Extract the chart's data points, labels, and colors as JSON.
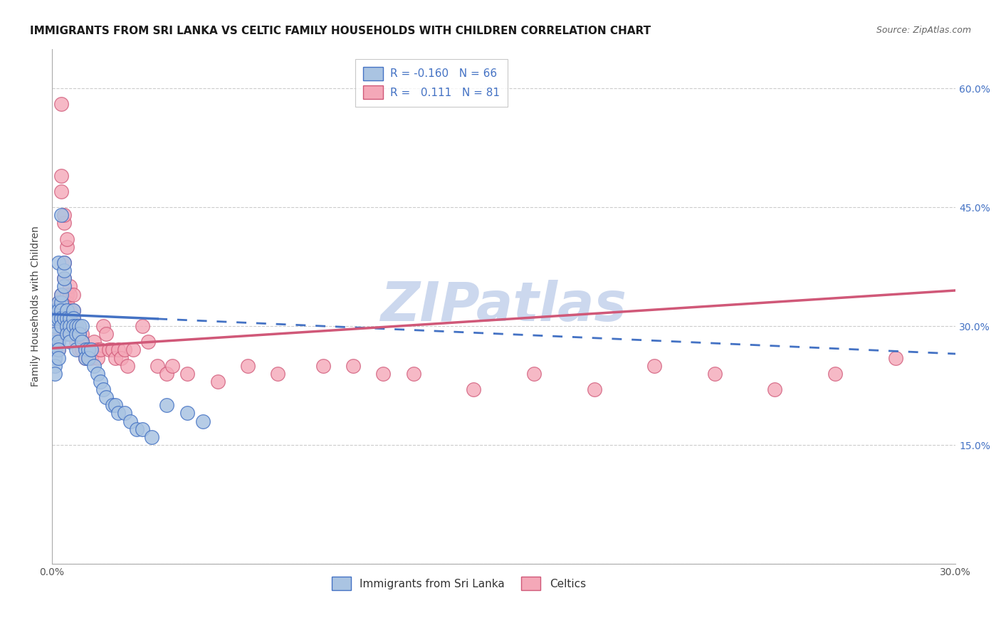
{
  "title": "IMMIGRANTS FROM SRI LANKA VS CELTIC FAMILY HOUSEHOLDS WITH CHILDREN CORRELATION CHART",
  "source": "Source: ZipAtlas.com",
  "ylabel": "Family Households with Children",
  "xlim": [
    0.0,
    0.3
  ],
  "ylim": [
    0.0,
    0.65
  ],
  "blue_R": -0.16,
  "blue_N": 66,
  "pink_R": 0.111,
  "pink_N": 81,
  "blue_color": "#aac4e2",
  "pink_color": "#f4a8b8",
  "blue_line_color": "#4472C4",
  "pink_line_color": "#D05878",
  "watermark": "ZIPatlas",
  "watermark_color": "#ccd8ee",
  "legend1_label_blue": "R = -0.160   N = 66",
  "legend1_label_pink": "R =   0.111   N = 81",
  "legend2_label_blue": "Immigrants from Sri Lanka",
  "legend2_label_pink": "Celtics",
  "ytick_positions": [
    0.0,
    0.15,
    0.3,
    0.45,
    0.6
  ],
  "ytick_labels_right": [
    "0.0%",
    "15.0%",
    "30.0%",
    "45.0%",
    "60.0%"
  ],
  "xtick_positions": [
    0.0,
    0.05,
    0.1,
    0.15,
    0.2,
    0.25,
    0.3
  ],
  "xtick_labels": [
    "0.0%",
    "",
    "",
    "",
    "",
    "",
    "30.0%"
  ],
  "blue_x": [
    0.001,
    0.001,
    0.001,
    0.001,
    0.001,
    0.001,
    0.001,
    0.001,
    0.001,
    0.002,
    0.002,
    0.002,
    0.002,
    0.002,
    0.002,
    0.002,
    0.003,
    0.003,
    0.003,
    0.003,
    0.003,
    0.003,
    0.004,
    0.004,
    0.004,
    0.004,
    0.004,
    0.005,
    0.005,
    0.005,
    0.005,
    0.006,
    0.006,
    0.006,
    0.006,
    0.007,
    0.007,
    0.007,
    0.008,
    0.008,
    0.008,
    0.009,
    0.009,
    0.01,
    0.01,
    0.011,
    0.011,
    0.012,
    0.012,
    0.013,
    0.014,
    0.015,
    0.016,
    0.017,
    0.018,
    0.02,
    0.021,
    0.022,
    0.024,
    0.026,
    0.028,
    0.03,
    0.033,
    0.038,
    0.045,
    0.05
  ],
  "blue_y": [
    0.3,
    0.28,
    0.27,
    0.29,
    0.32,
    0.31,
    0.26,
    0.25,
    0.24,
    0.33,
    0.32,
    0.31,
    0.28,
    0.27,
    0.26,
    0.38,
    0.33,
    0.34,
    0.32,
    0.31,
    0.3,
    0.44,
    0.35,
    0.36,
    0.31,
    0.37,
    0.38,
    0.32,
    0.31,
    0.3,
    0.29,
    0.31,
    0.3,
    0.29,
    0.28,
    0.32,
    0.31,
    0.3,
    0.3,
    0.29,
    0.27,
    0.3,
    0.29,
    0.3,
    0.28,
    0.27,
    0.26,
    0.27,
    0.26,
    0.27,
    0.25,
    0.24,
    0.23,
    0.22,
    0.21,
    0.2,
    0.2,
    0.19,
    0.19,
    0.18,
    0.17,
    0.17,
    0.16,
    0.2,
    0.19,
    0.18
  ],
  "pink_x": [
    0.001,
    0.001,
    0.001,
    0.001,
    0.002,
    0.002,
    0.002,
    0.002,
    0.002,
    0.003,
    0.003,
    0.003,
    0.003,
    0.003,
    0.004,
    0.004,
    0.004,
    0.005,
    0.005,
    0.005,
    0.006,
    0.006,
    0.006,
    0.006,
    0.007,
    0.007,
    0.007,
    0.007,
    0.008,
    0.008,
    0.008,
    0.009,
    0.009,
    0.01,
    0.01,
    0.01,
    0.011,
    0.011,
    0.012,
    0.012,
    0.013,
    0.013,
    0.014,
    0.015,
    0.015,
    0.016,
    0.017,
    0.018,
    0.019,
    0.02,
    0.021,
    0.022,
    0.023,
    0.024,
    0.025,
    0.027,
    0.03,
    0.032,
    0.035,
    0.038,
    0.04,
    0.045,
    0.055,
    0.065,
    0.075,
    0.09,
    0.1,
    0.11,
    0.12,
    0.14,
    0.16,
    0.18,
    0.2,
    0.22,
    0.24,
    0.26,
    0.28,
    0.003,
    0.003,
    0.004,
    0.005
  ],
  "pink_y": [
    0.3,
    0.29,
    0.28,
    0.27,
    0.33,
    0.32,
    0.29,
    0.28,
    0.27,
    0.34,
    0.32,
    0.31,
    0.3,
    0.58,
    0.43,
    0.38,
    0.36,
    0.34,
    0.33,
    0.4,
    0.35,
    0.34,
    0.32,
    0.31,
    0.34,
    0.32,
    0.3,
    0.31,
    0.3,
    0.29,
    0.28,
    0.29,
    0.27,
    0.29,
    0.28,
    0.27,
    0.27,
    0.26,
    0.27,
    0.26,
    0.26,
    0.27,
    0.28,
    0.27,
    0.26,
    0.27,
    0.3,
    0.29,
    0.27,
    0.27,
    0.26,
    0.27,
    0.26,
    0.27,
    0.25,
    0.27,
    0.3,
    0.28,
    0.25,
    0.24,
    0.25,
    0.24,
    0.23,
    0.25,
    0.24,
    0.25,
    0.25,
    0.24,
    0.24,
    0.22,
    0.24,
    0.22,
    0.25,
    0.24,
    0.22,
    0.24,
    0.26,
    0.49,
    0.47,
    0.44,
    0.41
  ],
  "blue_trend_x0": 0.0,
  "blue_trend_x1": 0.3,
  "blue_trend_y0": 0.315,
  "blue_trend_y1": 0.265,
  "pink_trend_x0": 0.0,
  "pink_trend_x1": 0.3,
  "pink_trend_y0": 0.272,
  "pink_trend_y1": 0.345
}
